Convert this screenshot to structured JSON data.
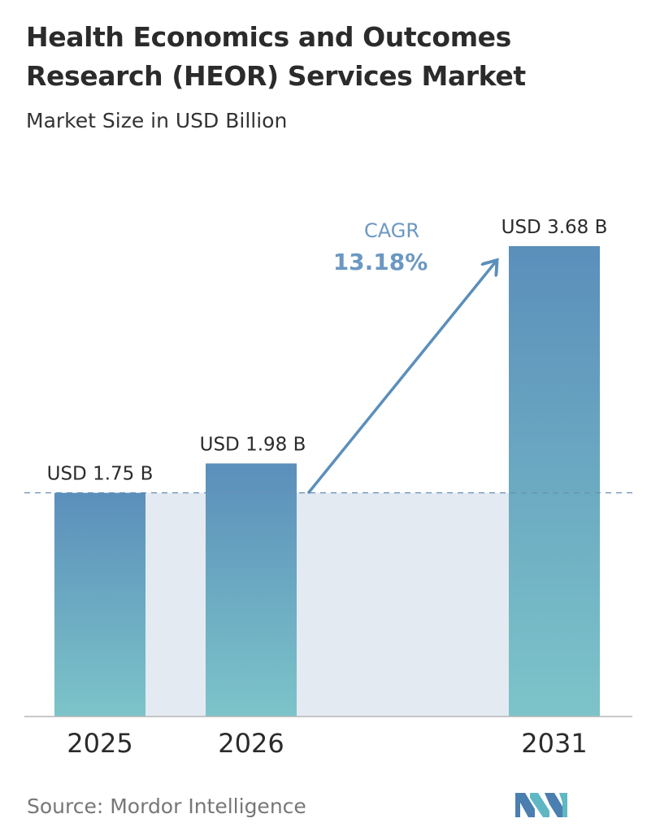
{
  "chart_data": {
    "type": "bar",
    "title_lines": [
      "Health Economics and Outcomes",
      "Research (HEOR) Services Market"
    ],
    "subtitle": "Market Size in USD Billion",
    "categories": [
      "2025",
      "2026",
      "2031"
    ],
    "values": [
      1.75,
      1.98,
      3.68
    ],
    "value_labels": [
      "USD 1.75 B",
      "USD 1.98 B",
      "USD 3.68 B"
    ],
    "ylim": [
      0,
      3.68
    ],
    "grid": false,
    "reference_line_value": 1.75,
    "cagr_label": "CAGR",
    "cagr_value": "13.18%"
  },
  "colors": {
    "bar_top": "#5b8fbb",
    "bar_bottom": "#7cc4c9",
    "band": "#e3eaf2",
    "arrow": "#5b8fbb",
    "cagr_text": "#6b98c2",
    "axis": "#b5b5b5",
    "dash": "#6a8fb3"
  },
  "source": "Source:  Mordor Intelligence",
  "logo_icon": "mordor-intelligence-logo-icon"
}
